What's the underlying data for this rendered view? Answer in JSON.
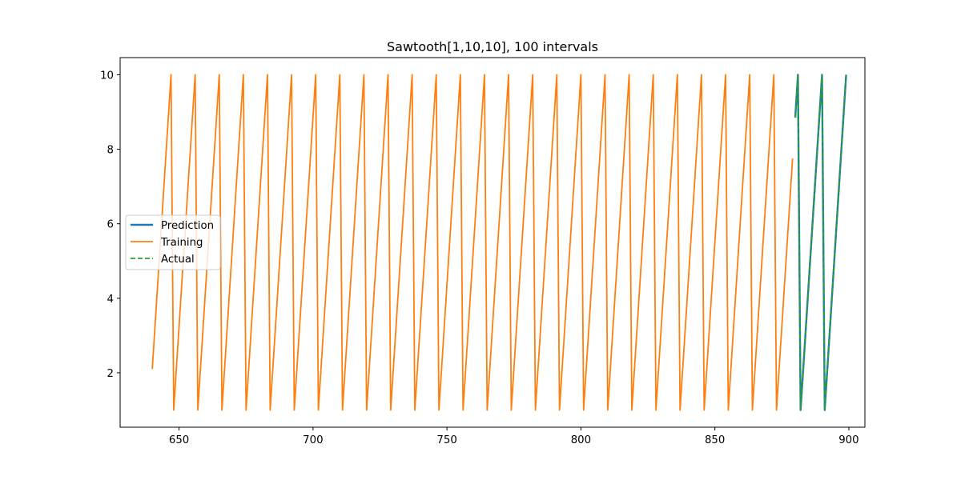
{
  "chart_data": {
    "type": "line",
    "title": "Sawtooth[1,10,10], 100 intervals",
    "xlabel": "",
    "ylabel": "",
    "xlim": [
      628,
      906
    ],
    "ylim": [
      0.54,
      10.46
    ],
    "x_ticks": [
      650,
      700,
      750,
      800,
      850,
      900
    ],
    "y_ticks": [
      2,
      4,
      6,
      8,
      10
    ],
    "grid": false,
    "legend_position": "center-left",
    "series": [
      {
        "name": "Prediction",
        "color": "#1f77b4",
        "style": "solid",
        "x": [
          880,
          881,
          882,
          890,
          891,
          899
        ],
        "y": [
          8.85,
          10,
          1,
          10,
          1,
          10
        ]
      },
      {
        "name": "Training",
        "color": "#ff7f0e",
        "style": "solid",
        "x": [
          640,
          647,
          648,
          656,
          657,
          665,
          666,
          674,
          675,
          683,
          684,
          692,
          693,
          701,
          702,
          710,
          711,
          719,
          720,
          728,
          729,
          737,
          738,
          746,
          747,
          755,
          756,
          764,
          765,
          773,
          774,
          782,
          783,
          791,
          792,
          800,
          801,
          809,
          810,
          818,
          819,
          827,
          828,
          836,
          837,
          845,
          846,
          854,
          855,
          863,
          864,
          872,
          873,
          879
        ],
        "y": [
          2.1,
          10,
          1,
          10,
          1,
          10,
          1,
          10,
          1,
          10,
          1,
          10,
          1,
          10,
          1,
          10,
          1,
          10,
          1,
          10,
          1,
          10,
          1,
          10,
          1,
          10,
          1,
          10,
          1,
          10,
          1,
          10,
          1,
          10,
          1,
          10,
          1,
          10,
          1,
          10,
          1,
          10,
          1,
          10,
          1,
          10,
          1,
          10,
          1,
          10,
          1,
          10,
          1,
          7.75
        ]
      },
      {
        "name": "Actual",
        "color": "#2ca02c",
        "style": "dashed",
        "x": [
          880,
          881,
          882,
          890,
          891,
          899
        ],
        "y": [
          8.85,
          10,
          1,
          10,
          1,
          10
        ]
      }
    ]
  }
}
